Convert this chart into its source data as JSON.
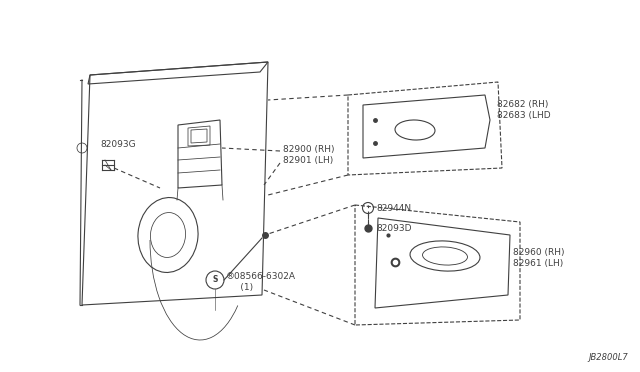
{
  "bg_color": "#ffffff",
  "line_color": "#404040",
  "fig_width": 6.4,
  "fig_height": 3.72,
  "dpi": 100,
  "diagram_id": "JB2800L7",
  "label_82093G": "82093G",
  "label_82900": "82900 (RH)\n82901 (LH)",
  "label_08566": "®08566-6302A\n     (1)",
  "label_82682": "82682 (RH)\n82683 (LHD",
  "label_82944N": "82944N",
  "label_82093D": "82093D",
  "label_82960": "82960 (RH)\n82961 (LH)"
}
